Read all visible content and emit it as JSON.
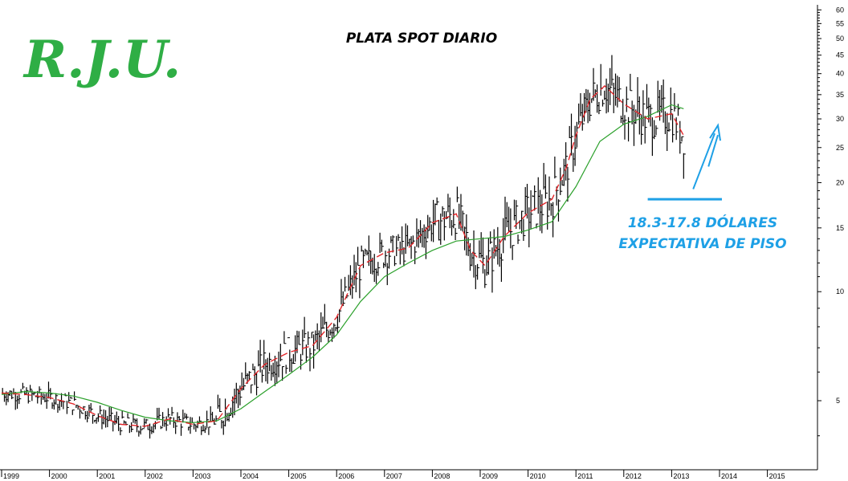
{
  "logo": {
    "text": "R.J.U.",
    "color": "#2fae45"
  },
  "chart_data": {
    "type": "line",
    "title": "PLATA SPOT DIARIO",
    "xlabel": "",
    "ylabel": "",
    "y_scale": "log",
    "ylim": [
      3.6,
      62
    ],
    "xlim": [
      1999.0,
      2016.0
    ],
    "grid": false,
    "y_axis_position": "right",
    "x_ticks": [
      "1999",
      "2000",
      "2001",
      "2002",
      "2003",
      "2004",
      "2005",
      "2006",
      "2007",
      "2008",
      "2009",
      "2010",
      "2011",
      "2012",
      "2013",
      "2014",
      "2015"
    ],
    "y_ticks": [
      5,
      10,
      15,
      20,
      25,
      30,
      35,
      40,
      45,
      50,
      55,
      60
    ],
    "colors": {
      "price": "#000000",
      "ma_fast": "#e3262a",
      "ma_slow": "#2ba02b",
      "annotation": "#1ea0e6"
    },
    "series": [
      {
        "name": "",
        "style": "solid",
        "x": [
          1999.0,
          1999.5,
          2000.0,
          2000.5,
          2001.0,
          2001.5,
          2002.0,
          2002.5,
          2003.0,
          2003.5,
          2004.0,
          2004.5,
          2005.0,
          2005.5,
          2006.0,
          2006.5,
          2007.0,
          2007.5,
          2008.0,
          2008.5,
          2009.0,
          2009.5,
          2010.0,
          2010.5,
          2011.0,
          2011.5,
          2012.0,
          2012.5,
          2013.0,
          2013.25
        ],
        "y": [
          5.2,
          5.3,
          5.25,
          5.15,
          4.95,
          4.7,
          4.5,
          4.4,
          4.35,
          4.4,
          4.75,
          5.3,
          5.9,
          6.6,
          7.6,
          9.4,
          11.0,
          12.0,
          13.0,
          13.8,
          14.0,
          14.2,
          14.8,
          15.6,
          19.5,
          26.0,
          29.0,
          30.5,
          32.8,
          32.0
        ]
      },
      {
        "name": "",
        "style": "dashed",
        "x": [
          1999.0,
          1999.5,
          2000.0,
          2000.5,
          2001.0,
          2001.5,
          2002.0,
          2002.5,
          2003.0,
          2003.5,
          2004.0,
          2004.5,
          2005.0,
          2005.5,
          2006.0,
          2006.5,
          2007.0,
          2007.5,
          2008.0,
          2008.5,
          2008.8,
          2009.1,
          2009.5,
          2010.0,
          2010.5,
          2010.8,
          2011.0,
          2011.3,
          2011.6,
          2012.0,
          2012.5,
          2013.0,
          2013.25
        ],
        "y": [
          5.25,
          5.2,
          5.1,
          4.9,
          4.55,
          4.3,
          4.25,
          4.45,
          4.3,
          4.4,
          5.4,
          6.3,
          6.8,
          7.1,
          8.5,
          11.8,
          12.8,
          13.2,
          15.5,
          16.4,
          13.0,
          11.8,
          14.2,
          16.5,
          18.0,
          22.0,
          27.0,
          34.0,
          37.0,
          33.0,
          30.0,
          31.0,
          27.0
        ]
      }
    ],
    "annotations": [
      {
        "text": "18.3-17.8 DÓLARES",
        "type": "label"
      },
      {
        "text": "EXPECTATIVA DE PISO",
        "type": "label"
      },
      {
        "type": "hline",
        "y": 18.0,
        "x": [
          2012.5,
          2014.05
        ]
      },
      {
        "type": "arrow",
        "from": [
          2013.45,
          19.2
        ],
        "to": [
          2013.95,
          28.5
        ]
      }
    ]
  }
}
